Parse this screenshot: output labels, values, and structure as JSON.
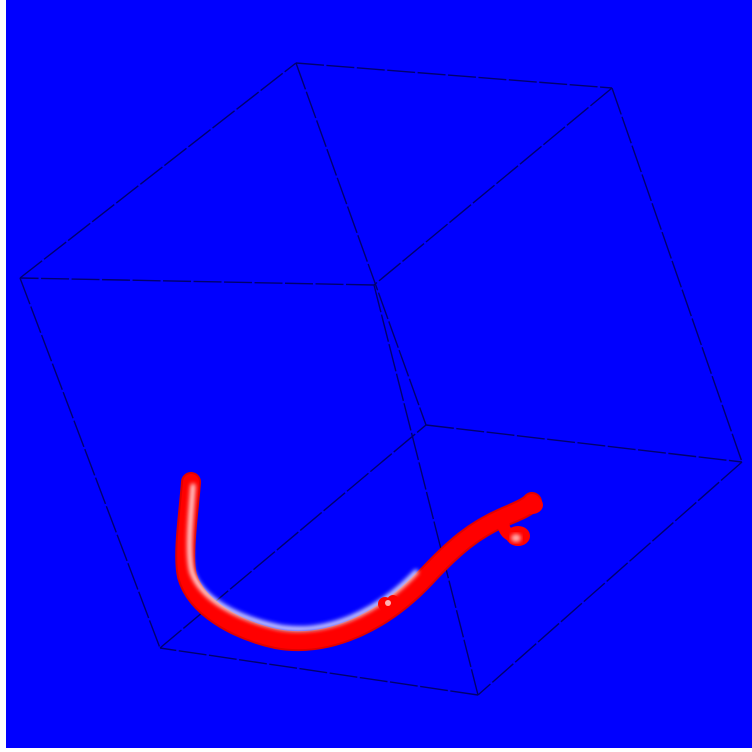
{
  "scene": {
    "background_color": "#0000ff",
    "frame_color": "#ffffff",
    "box_edge_color": "#00006e",
    "tube_color": "#ff0000",
    "tube_highlight_color": "#ffffff",
    "description_icons": [
      "bounding-box-wireframe",
      "red-tube-trajectory"
    ]
  }
}
